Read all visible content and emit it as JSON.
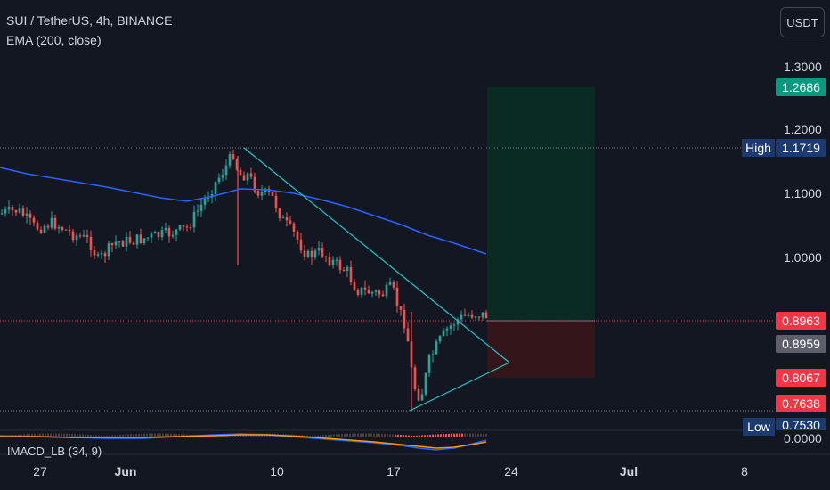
{
  "header": {
    "title": "SUI / TetherUS, 4h, BINANCE",
    "indicator": "EMA (200, close)"
  },
  "currency_button": "USDT",
  "macd_label": "IMACD_LB (34, 9)",
  "price_axis": {
    "ticks": [
      "1.3000",
      "1.2000",
      "1.1000",
      "1.0000",
      "0.0000"
    ]
  },
  "price_tags": {
    "target": "1.2686",
    "high_label": "High",
    "high_value": "1.1719",
    "current_red": "0.8963",
    "current_gray": "0.8959",
    "stop": "0.8067",
    "low_red": "0.7638",
    "low_label": "Low",
    "low_value": "0.7530"
  },
  "time_axis": {
    "ticks": [
      "27",
      "Jun",
      "10",
      "17",
      "24",
      "Jul",
      "8"
    ]
  },
  "colors": {
    "background": "#131722",
    "up": "#26a69a",
    "down": "#ef5350",
    "ema": "#2962ff",
    "trendline": "#22c5c9",
    "target_zone": "#0d3029",
    "stop_zone": "#3a1518",
    "tag_red": "#f23645",
    "tag_green": "#089981",
    "tag_navy": "#1c3a70",
    "tag_gray": "#5d606b"
  }
}
